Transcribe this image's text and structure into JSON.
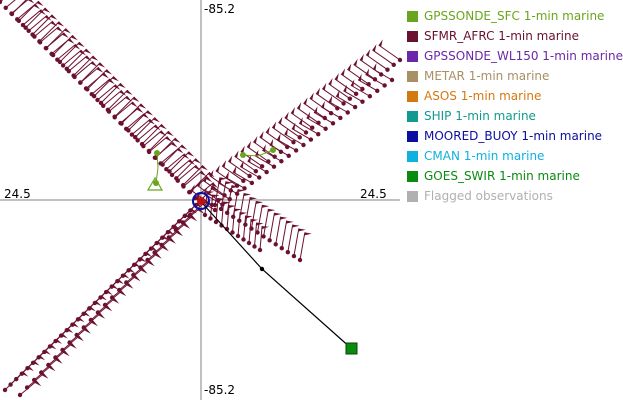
{
  "axes": {
    "top_label": "-85.2",
    "bottom_label": "-85.2",
    "left_label": "24.5",
    "right_label": "24.5"
  },
  "legend": [
    {
      "label": "GPSSONDE_SFC 1-min marine",
      "color": "#6aa51f"
    },
    {
      "label": "SFMR_AFRC 1-min marine",
      "color": "#6b1030"
    },
    {
      "label": "GPSSONDE_WL150 1-min marine",
      "color": "#6a28a8"
    },
    {
      "label": "METAR 1-min marine",
      "color": "#a88f65"
    },
    {
      "label": "ASOS 1-min marine",
      "color": "#d47812"
    },
    {
      "label": "SHIP 1-min marine",
      "color": "#109a90"
    },
    {
      "label": "MOORED_BUOY 1-min marine",
      "color": "#0b0ea0"
    },
    {
      "label": "CMAN 1-min marine",
      "color": "#10b0e0"
    },
    {
      "label": "GOES_SWIR 1-min marine",
      "color": "#0b8a10"
    },
    {
      "label": "Flagged observations",
      "color": "#b0b0b0"
    }
  ]
}
